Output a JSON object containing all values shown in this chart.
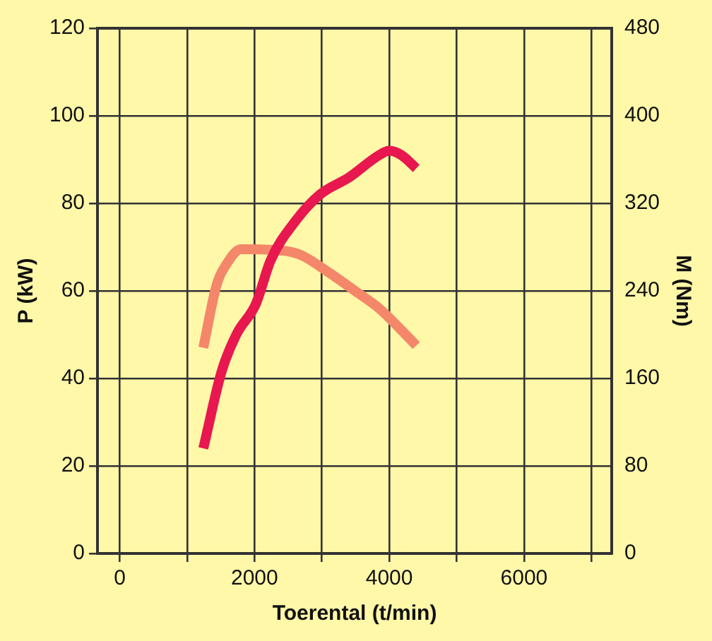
{
  "chart_data": {
    "type": "line",
    "xlabel": "Toerental (t/min)",
    "ylabel": "P (kW)",
    "y2label": "M (Nm)",
    "xlim": [
      -330,
      7300
    ],
    "xticks": [
      0,
      {
        "value": 1000,
        "label": null
      },
      2000,
      {
        "value": 3000,
        "label": null
      },
      4000,
      {
        "value": 5000,
        "label": null
      },
      6000,
      {
        "value": 7000,
        "label": null
      }
    ],
    "ylim": [
      0,
      120
    ],
    "yticks": [
      0,
      20,
      40,
      60,
      80,
      100,
      120
    ],
    "y2lim": [
      0,
      480
    ],
    "y2ticks": [
      0,
      80,
      160,
      240,
      320,
      400,
      480
    ],
    "grid": true,
    "legend": false,
    "marker": "none",
    "line_style": "solid",
    "series": [
      {
        "color": "#e8174f",
        "x": [
          1240,
          1510,
          1730,
          2020,
          2240,
          2610,
          2970,
          3410,
          3850,
          4000,
          4180,
          4400
        ],
        "values": [
          24,
          41.5,
          50,
          57,
          67,
          76,
          82,
          86,
          91,
          92,
          91,
          88
        ]
      },
      {
        "color": "#f4876a",
        "axis": "y2",
        "x": [
          1240,
          1440,
          1580,
          1800,
          2390,
          2680,
          3120,
          3490,
          3850,
          4150,
          4400
        ],
        "values": [
          188,
          246,
          264,
          278,
          277,
          273,
          256,
          240,
          224,
          206,
          190
        ]
      }
    ]
  }
}
